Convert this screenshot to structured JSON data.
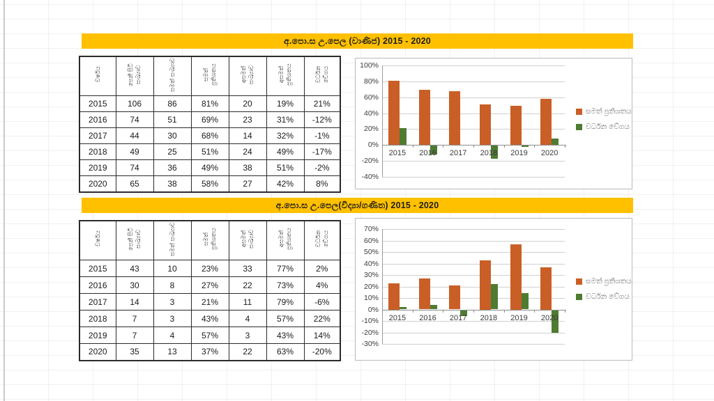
{
  "colors": {
    "section_header_bg": "#FFC000",
    "section_header_text": "#1f1f1f",
    "pass_series": "#C95F26",
    "growth_series": "#4E7B31",
    "gridline": "#cfcfcf",
    "zero_axis": "#8c8c8c",
    "table_border": "#2a2a2a"
  },
  "table_headers": [
    "වර්ෂය",
    "පෙනී සිටි සංඛ්‍යාව",
    "සමත් සංඛ්‍යාව",
    "සමත් ප්‍රතිශතය",
    "අසමත් සංඛ්‍යාව",
    "අසමත් ප්‍රතිශතය",
    "වර්ධන වේගය"
  ],
  "sections": [
    {
      "title": "අ.පො.ස උ.පෙල (වාණිජ) 2015 - 2020",
      "table_rows": [
        [
          "2015",
          "106",
          "86",
          "81%",
          "20",
          "19%",
          "21%"
        ],
        [
          "2016",
          "74",
          "51",
          "69%",
          "23",
          "31%",
          "-12%"
        ],
        [
          "2017",
          "44",
          "30",
          "68%",
          "14",
          "32%",
          "-1%"
        ],
        [
          "2018",
          "49",
          "25",
          "51%",
          "24",
          "49%",
          "-17%"
        ],
        [
          "2019",
          "74",
          "36",
          "49%",
          "38",
          "51%",
          "-2%"
        ],
        [
          "2020",
          "65",
          "38",
          "58%",
          "27",
          "42%",
          "8%"
        ]
      ]
    },
    {
      "title": "අ.පො.ස උ.පෙල(විද්‍යා/ගණිත) 2015 - 2020",
      "table_rows": [
        [
          "2015",
          "43",
          "10",
          "23%",
          "33",
          "77%",
          "2%"
        ],
        [
          "2016",
          "30",
          "8",
          "27%",
          "22",
          "73%",
          "4%"
        ],
        [
          "2017",
          "14",
          "3",
          "21%",
          "11",
          "79%",
          "-6%"
        ],
        [
          "2018",
          "7",
          "3",
          "43%",
          "4",
          "57%",
          "22%"
        ],
        [
          "2019",
          "7",
          "4",
          "57%",
          "3",
          "43%",
          "14%"
        ],
        [
          "2020",
          "35",
          "13",
          "37%",
          "22",
          "63%",
          "-20%"
        ]
      ]
    }
  ],
  "chart_data": [
    {
      "type": "bar",
      "title": "අ.පො.ස උ.පෙල (වාණිජ) 2015 - 2020",
      "categories": [
        "2015",
        "2016",
        "2017",
        "2018",
        "2019",
        "2020"
      ],
      "series": [
        {
          "name": "සමත් ප්‍රතිශතය",
          "color": "#C95F26",
          "values": [
            81,
            69,
            68,
            51,
            49,
            58
          ]
        },
        {
          "name": "වර්ධන වේගය",
          "color": "#4E7B31",
          "values": [
            21,
            -12,
            -1,
            -17,
            -2,
            8
          ]
        }
      ],
      "xlabel": "",
      "ylabel": "",
      "ylim": [
        -40,
        100
      ],
      "ytick_step": 20,
      "ytick_format": "percent",
      "grid": true,
      "legend_position": "right"
    },
    {
      "type": "bar",
      "title": "අ.පො.ස උ.පෙල(විද්‍යා/ගණිත) 2015 - 2020",
      "categories": [
        "2015",
        "2016",
        "2017",
        "2018",
        "2019",
        "2020"
      ],
      "series": [
        {
          "name": "සමත් ප්‍රතිශතය",
          "color": "#C95F26",
          "values": [
            23,
            27,
            21,
            43,
            57,
            37
          ]
        },
        {
          "name": "වර්ධන වේගය",
          "color": "#4E7B31",
          "values": [
            2,
            4,
            -6,
            22,
            14,
            -20
          ]
        }
      ],
      "xlabel": "",
      "ylabel": "",
      "ylim": [
        -30,
        70
      ],
      "ytick_step": 10,
      "ytick_format": "percent",
      "grid": true,
      "legend_position": "right"
    }
  ]
}
